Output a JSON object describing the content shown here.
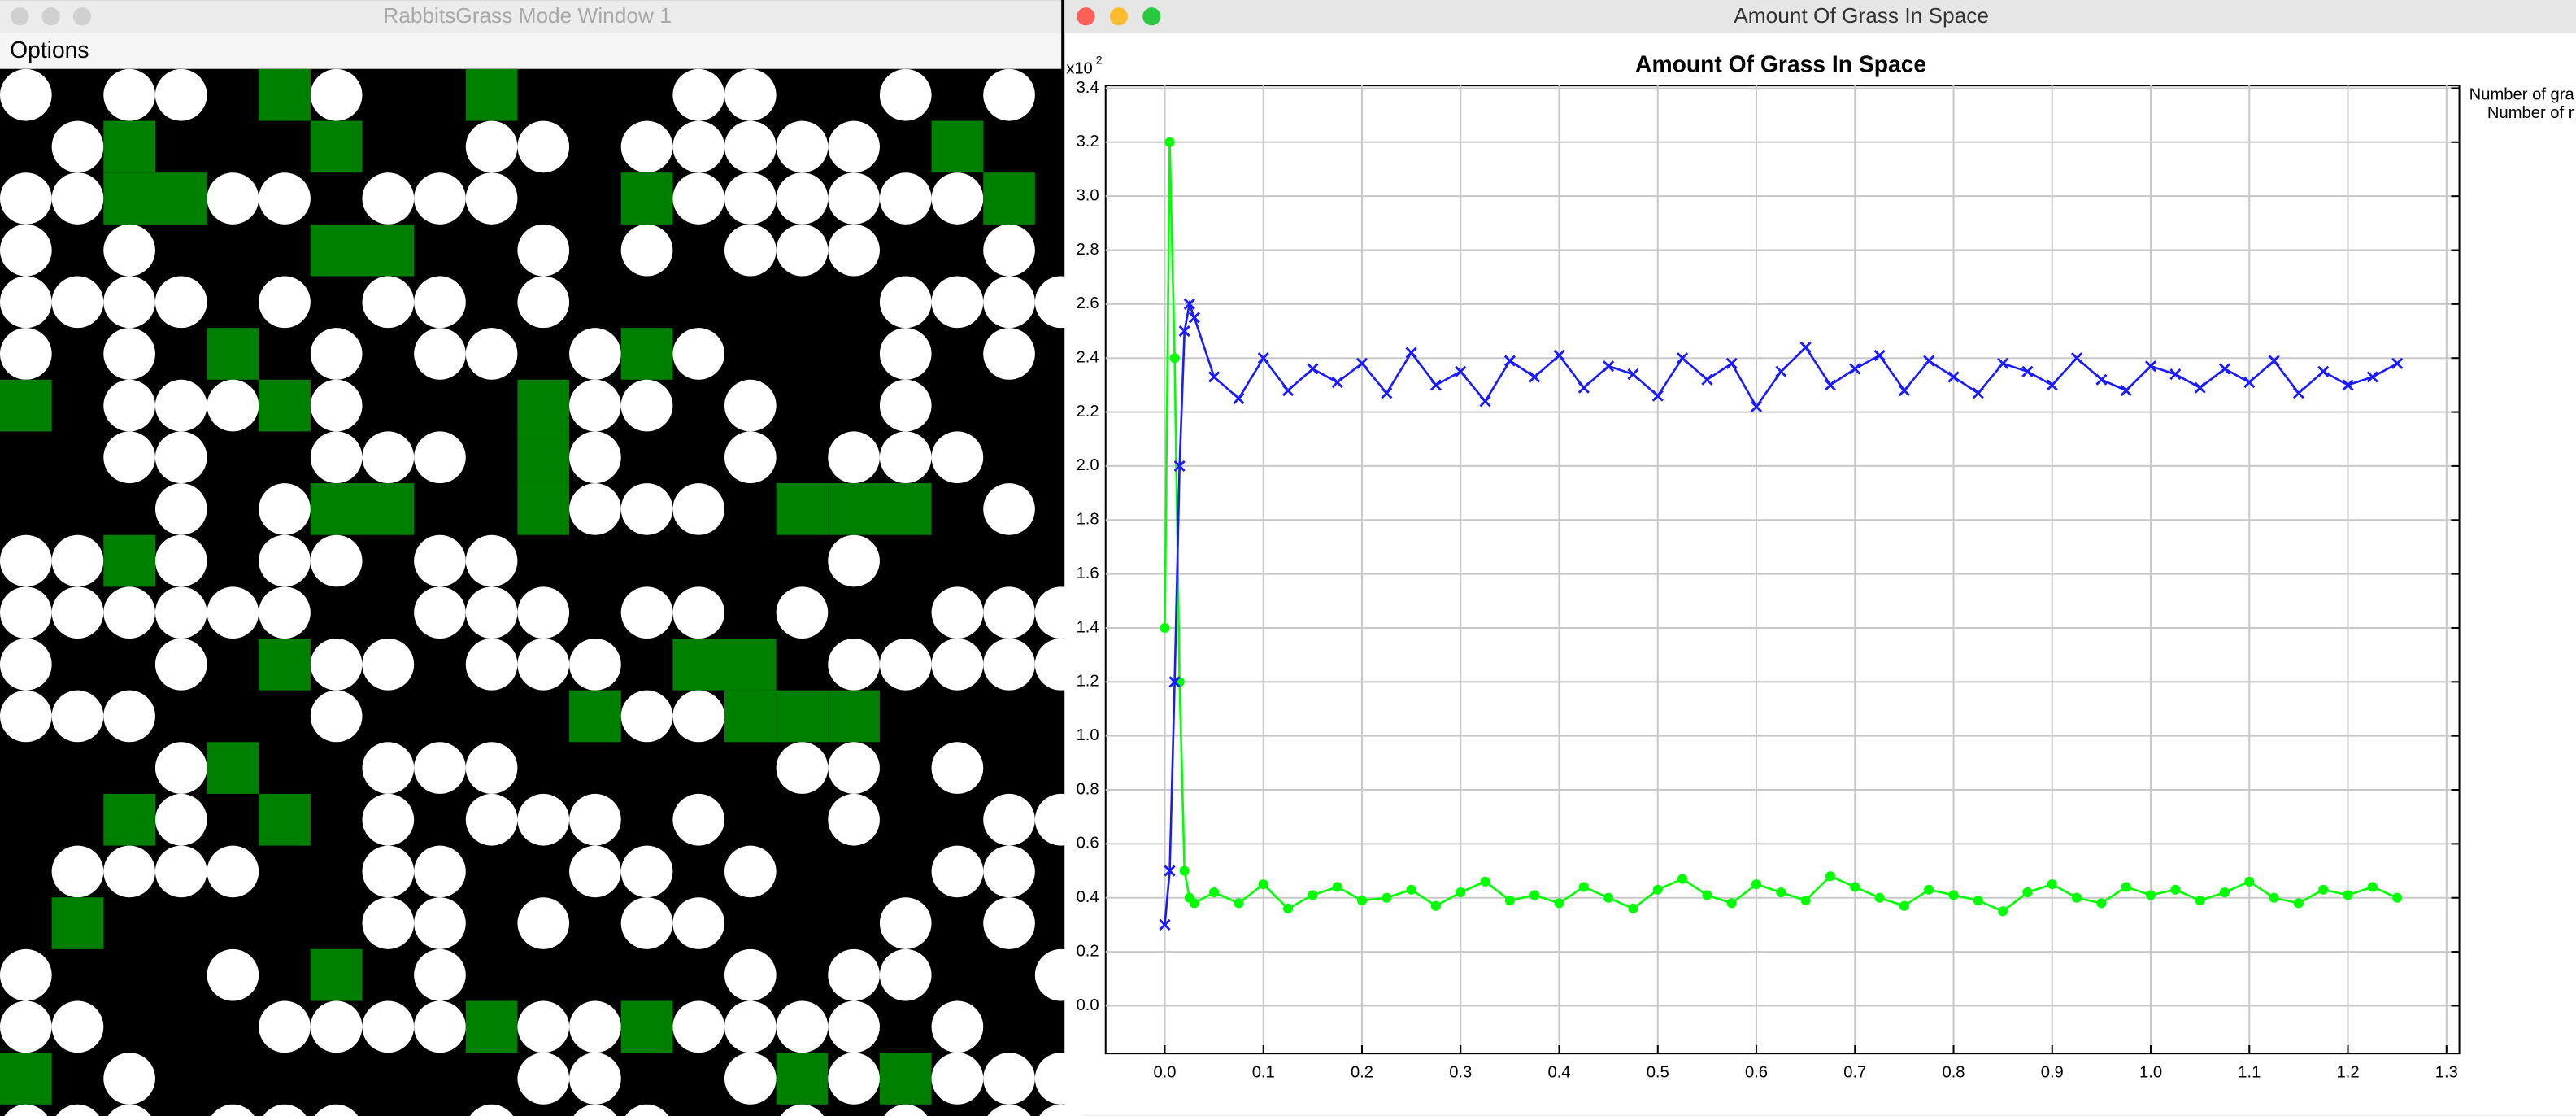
{
  "left_window": {
    "title": "RabbitsGrass Mode Window 1",
    "menu": "Options"
  },
  "right_window": {
    "title": "Amount Of Grass In Space"
  },
  "chart_data": {
    "type": "line",
    "title": "Amount Of Grass In Space",
    "y_multiplier": "x10",
    "y_multiplier_exp": "2",
    "x": [
      0,
      0.005,
      0.01,
      0.015,
      0.02,
      0.025,
      0.03,
      0.05,
      0.075,
      0.1,
      0.125,
      0.15,
      0.175,
      0.2,
      0.225,
      0.25,
      0.275,
      0.3,
      0.325,
      0.35,
      0.375,
      0.4,
      0.425,
      0.45,
      0.475,
      0.5,
      0.525,
      0.55,
      0.575,
      0.6,
      0.625,
      0.65,
      0.675,
      0.7,
      0.725,
      0.75,
      0.775,
      0.8,
      0.825,
      0.85,
      0.875,
      0.9,
      0.925,
      0.95,
      0.975,
      1.0,
      1.025,
      1.05,
      1.075,
      1.1,
      1.125,
      1.15,
      1.175,
      1.2,
      1.225,
      1.25
    ],
    "series": [
      {
        "name": "Number of gra",
        "color": "#00ff00",
        "marker": "circle",
        "values": [
          1.4,
          3.2,
          2.4,
          1.2,
          0.5,
          0.4,
          0.38,
          0.42,
          0.38,
          0.45,
          0.36,
          0.41,
          0.44,
          0.39,
          0.4,
          0.43,
          0.37,
          0.42,
          0.46,
          0.39,
          0.41,
          0.38,
          0.44,
          0.4,
          0.36,
          0.43,
          0.47,
          0.41,
          0.38,
          0.45,
          0.42,
          0.39,
          0.48,
          0.44,
          0.4,
          0.37,
          0.43,
          0.41,
          0.39,
          0.35,
          0.42,
          0.45,
          0.4,
          0.38,
          0.44,
          0.41,
          0.43,
          0.39,
          0.42,
          0.46,
          0.4,
          0.38,
          0.43,
          0.41,
          0.44,
          0.4
        ]
      },
      {
        "name": "Number of r",
        "color": "#1a1aff",
        "marker": "x",
        "values": [
          0.3,
          0.5,
          1.2,
          2.0,
          2.5,
          2.6,
          2.55,
          2.33,
          2.25,
          2.4,
          2.28,
          2.36,
          2.31,
          2.38,
          2.27,
          2.42,
          2.3,
          2.35,
          2.24,
          2.39,
          2.33,
          2.41,
          2.29,
          2.37,
          2.34,
          2.26,
          2.4,
          2.32,
          2.38,
          2.22,
          2.35,
          2.44,
          2.3,
          2.36,
          2.41,
          2.28,
          2.39,
          2.33,
          2.27,
          2.38,
          2.35,
          2.3,
          2.4,
          2.32,
          2.28,
          2.37,
          2.34,
          2.29,
          2.36,
          2.31,
          2.39,
          2.27,
          2.35,
          2.3,
          2.33,
          2.38
        ]
      }
    ],
    "xlim": [
      -0.06,
      1.313
    ],
    "ylim": [
      -0.177,
      3.41
    ],
    "xticks": [
      {
        "value": 0,
        "label": "0.0"
      },
      0.1,
      0.2,
      0.3,
      0.4,
      0.5,
      0.6,
      0.7,
      0.8,
      0.9,
      {
        "value": 1,
        "label": "1.0"
      },
      1.1,
      1.2,
      1.3
    ],
    "yticks": [
      {
        "value": 0,
        "label": "0.0"
      },
      0.2,
      0.4,
      0.6,
      0.8,
      {
        "value": 1,
        "label": "1.0"
      },
      1.2,
      1.4,
      1.6,
      1.8,
      {
        "value": 2,
        "label": "2.0"
      },
      2.2,
      2.4,
      2.6,
      2.8,
      {
        "value": 3,
        "label": "3.0"
      },
      3.2,
      3.4
    ],
    "grid": true
  }
}
